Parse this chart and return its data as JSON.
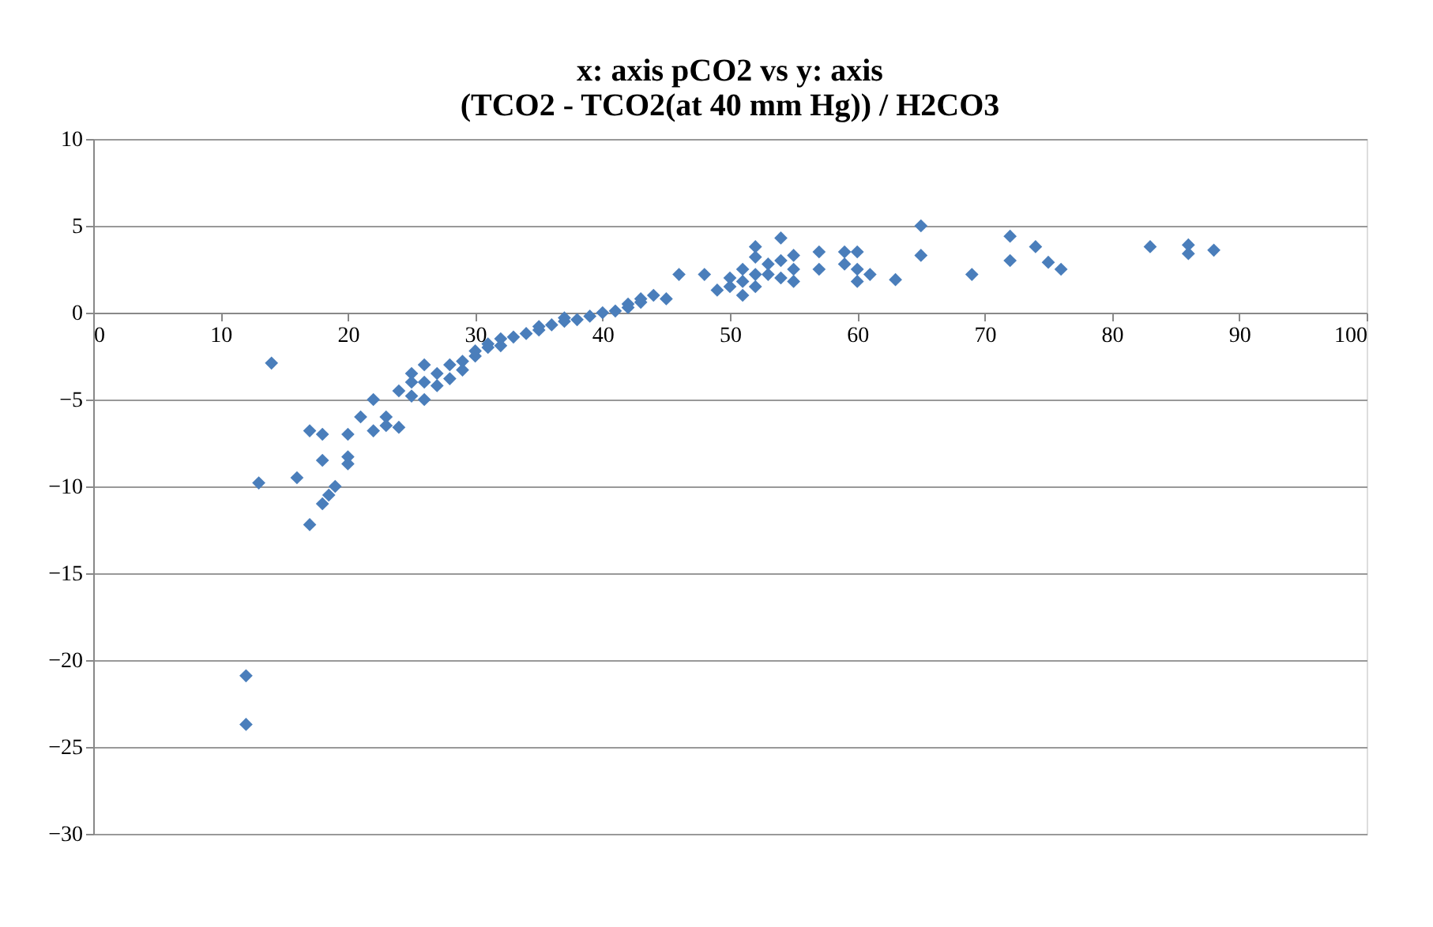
{
  "chart_data": {
    "type": "scatter",
    "title": [
      "x: axis  pCO2   vs y: axis",
      "(TCO2  -  TCO2(at 40 mm Hg)) / H2CO3"
    ],
    "marker": "diamond",
    "grid": "y",
    "xlim": [
      0,
      100
    ],
    "xticks": [
      0,
      10,
      20,
      30,
      40,
      50,
      60,
      70,
      80,
      90,
      100
    ],
    "ylim": [
      -30,
      10
    ],
    "yticks": [
      -30,
      -25,
      -20,
      -15,
      -10,
      -5,
      0,
      5,
      10
    ],
    "series": [
      {
        "color": "#4a7ebb",
        "x": [
          12,
          12,
          13,
          14,
          16,
          17,
          17,
          18,
          18,
          18,
          18.5,
          19,
          20,
          20,
          20,
          21,
          22,
          22,
          23,
          23,
          24,
          24,
          25,
          25,
          25,
          26,
          26,
          26,
          27,
          27,
          28,
          28,
          29,
          29,
          30,
          30,
          31,
          31,
          32,
          32,
          33,
          34,
          35,
          35,
          36,
          37,
          37,
          38,
          39,
          40,
          41,
          42,
          42,
          43,
          43,
          44,
          45,
          46,
          48,
          49,
          50,
          50,
          51,
          51,
          51,
          52,
          52,
          52,
          52,
          53,
          53,
          54,
          54,
          54,
          55,
          55,
          55,
          57,
          57,
          59,
          59,
          60,
          60,
          60,
          61,
          63,
          65,
          65,
          69,
          72,
          72,
          74,
          75,
          76,
          83,
          86,
          86,
          88
        ],
        "values": [
          -20.9,
          -23.7,
          -9.8,
          -2.9,
          -9.5,
          -6.8,
          -12.2,
          -7,
          -8.5,
          -11,
          -10.5,
          -10,
          -7,
          -8.3,
          -8.7,
          -6,
          -5,
          -6.8,
          -6,
          -6.5,
          -6.6,
          -4.5,
          -4,
          -3.5,
          -4.8,
          -3,
          -4,
          -5,
          -3.5,
          -4.2,
          -3,
          -3.8,
          -2.8,
          -3.3,
          -2.5,
          -2.2,
          -2,
          -1.8,
          -1.5,
          -1.9,
          -1.4,
          -1.2,
          -1,
          -0.8,
          -0.7,
          -0.5,
          -0.3,
          -0.4,
          -0.2,
          0,
          0.1,
          0.3,
          0.5,
          0.6,
          0.8,
          1,
          0.8,
          2.2,
          2.2,
          1.3,
          1.5,
          2,
          1,
          2.5,
          1.8,
          3.2,
          2.2,
          1.5,
          3.8,
          2.8,
          2.2,
          4.3,
          2,
          3,
          2.5,
          1.8,
          3.3,
          3.5,
          2.5,
          3.5,
          2.8,
          3.5,
          2.5,
          1.8,
          2.2,
          1.9,
          5,
          3.3,
          2.2,
          4.4,
          3,
          3.8,
          2.9,
          2.5,
          3.8,
          3.9,
          3.4,
          3.6
        ]
      }
    ]
  }
}
